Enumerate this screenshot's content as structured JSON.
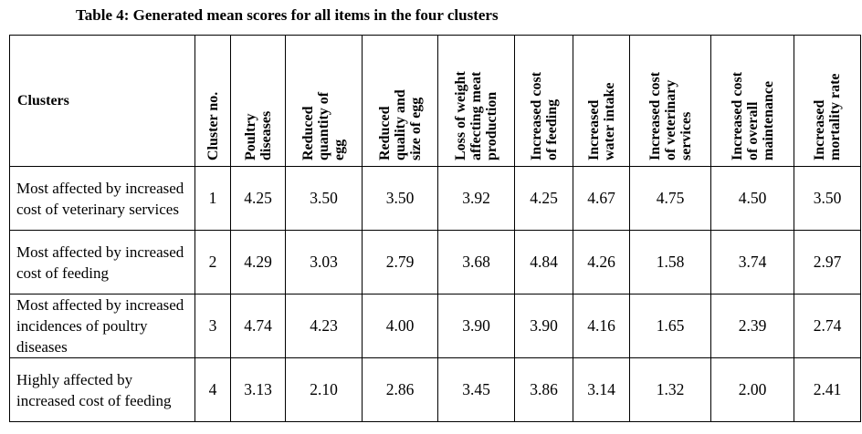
{
  "title": "Table 4: Generated mean scores for all items in the four clusters",
  "columns": [
    "Clusters",
    "Cluster no.",
    "Poultry\ndiseases",
    "Reduced\nquantity of\negg",
    "Reduced\nquality and\nsize of egg",
    "Loss of weight\naffecting meat\nproduction",
    "Increased cost\nof feeding",
    "Increased\nwater intake",
    "Increased cost\nof veterinary\nservices",
    "Increased cost\nof overall\nmaintenance",
    "Increased\nmortality rate"
  ],
  "rows": [
    [
      "Most affected by increased cost of veterinary services",
      "1",
      "4.25",
      "3.50",
      "3.50",
      "3.92",
      "4.25",
      "4.67",
      "4.75",
      "4.50",
      "3.50"
    ],
    [
      "Most affected by increased cost of feeding",
      "2",
      "4.29",
      "3.03",
      "2.79",
      "3.68",
      "4.84",
      "4.26",
      "1.58",
      "3.74",
      "2.97"
    ],
    [
      "Most affected by increased incidences of poultry diseases",
      "3",
      "4.74",
      "4.23",
      "4.00",
      "3.90",
      "3.90",
      "4.16",
      "1.65",
      "2.39",
      "2.74"
    ],
    [
      "Highly affected by increased cost of feeding",
      "4",
      "3.13",
      "2.10",
      "2.86",
      "3.45",
      "3.86",
      "3.14",
      "1.32",
      "2.00",
      "2.41"
    ]
  ]
}
